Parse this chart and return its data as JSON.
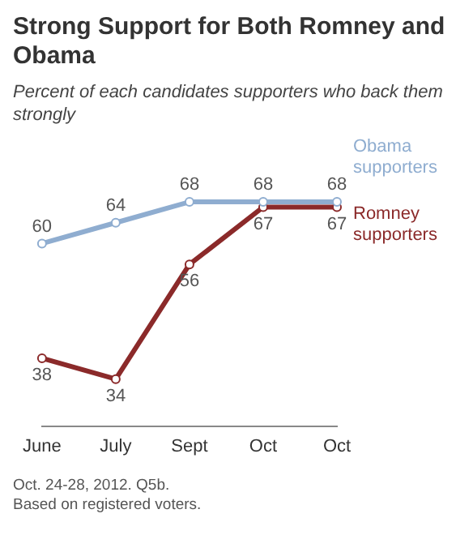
{
  "chart_data": {
    "type": "line",
    "title": "Strong Support for Both Romney and Obama",
    "subtitle": "Percent of each candidates supporters who back them strongly",
    "categories": [
      "June",
      "July",
      "Sept",
      "Oct",
      "Oct"
    ],
    "series": [
      {
        "name": "Obama supporters",
        "color": "#8fadd0",
        "values": [
          60,
          64,
          68,
          68,
          68
        ]
      },
      {
        "name": "Romney supporters",
        "color": "#8b2a2a",
        "values": [
          38,
          34,
          56,
          67,
          67
        ]
      }
    ],
    "data_labels": true,
    "marker": "circle",
    "grid": false,
    "annotations": [
      "Oct. 24-28, 2012. Q5b.",
      "Based on registered voters."
    ]
  }
}
